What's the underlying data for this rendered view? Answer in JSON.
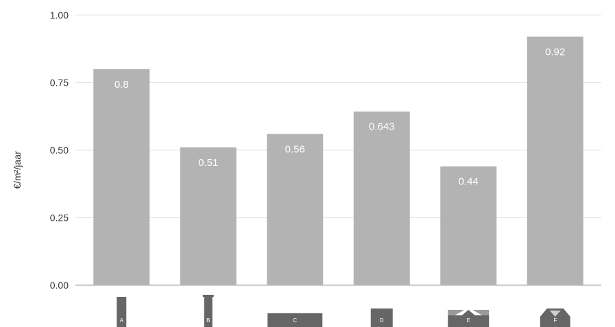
{
  "chart_data": {
    "type": "bar",
    "categories": [
      "A",
      "B",
      "C",
      "D",
      "E",
      "F"
    ],
    "values": [
      0.8,
      0.51,
      0.56,
      0.643,
      0.44,
      0.92
    ],
    "data_labels": [
      "0.8",
      "0.51",
      "0.56",
      "0.643",
      "0.44",
      "0.92"
    ],
    "ylabel": "€/m²/jaar",
    "xlabel": "",
    "title": "",
    "ylim": [
      0,
      1
    ],
    "yticks": [
      "0.00",
      "0.25",
      "0.50",
      "0.75",
      "1.00"
    ],
    "grid": true,
    "bar_color": "#b3b3b3",
    "gridline_color": "#e6e6e6",
    "icon_color": "#666666",
    "x_tick_icons": [
      "tall-narrow-block-icon",
      "tall-narrow-tower-icon",
      "long-low-block-icon",
      "small-box-icon",
      "gabled-row-icon",
      "gabled-roof-icon"
    ]
  }
}
